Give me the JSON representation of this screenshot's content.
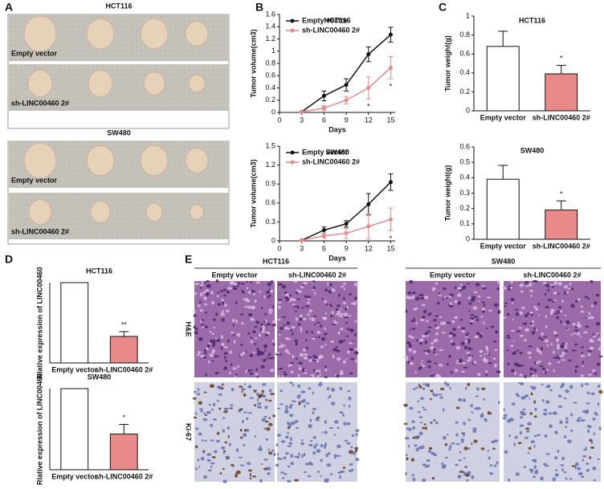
{
  "panel_labels": [
    "A",
    "B",
    "C",
    "D",
    "E"
  ],
  "panel_a": {
    "groups": [
      {
        "title": "HCT116",
        "rows": [
          "Empty vector",
          "sh-LINC00460 2#"
        ]
      },
      {
        "title": "SW480",
        "rows": [
          "Empty vector",
          "sh-LINC00460 2#"
        ]
      }
    ]
  },
  "panel_e": {
    "columns": [
      {
        "title": "HCT116",
        "subcolumns": [
          "Empty vector",
          "sh-LINC00460 2#"
        ]
      },
      {
        "title": "SW480",
        "subcolumns": [
          "Empty vector",
          "sh-LINC00460 2#"
        ]
      }
    ],
    "rows": [
      "H&E",
      "Ki-67"
    ]
  },
  "chart_data": [
    {
      "type": "line",
      "title": "HCT116",
      "x_label": "Days",
      "y_label": "Tumor volume(cm3)",
      "x": [
        3,
        6,
        9,
        12,
        15
      ],
      "xlim": [
        0,
        15.6
      ],
      "xticks": [
        0,
        3,
        6,
        9,
        12,
        15
      ],
      "ylim": [
        0,
        1.6
      ],
      "yticks": [
        0,
        0.2,
        0.4,
        0.6,
        0.8,
        1.0,
        1.2,
        1.4,
        1.6
      ],
      "legend": "upper left",
      "series": [
        {
          "name": "Empty vector",
          "color": "#111111",
          "values": [
            0.01,
            0.27,
            0.45,
            0.95,
            1.27
          ],
          "errors": [
            0.01,
            0.08,
            0.1,
            0.12,
            0.12
          ]
        },
        {
          "name": "sh-LINC00460 2#",
          "color": "#e8898a",
          "values": [
            0.01,
            0.07,
            0.2,
            0.4,
            0.73
          ],
          "errors": [
            0.01,
            0.04,
            0.06,
            0.18,
            0.18
          ]
        }
      ],
      "annotations": [
        {
          "text": "*",
          "x": 12
        },
        {
          "text": "*",
          "x": 15
        }
      ]
    },
    {
      "type": "line",
      "title": "SW480",
      "x_label": "Days",
      "y_label": "Tumor volume(cm3)",
      "x": [
        3,
        6,
        9,
        12,
        15
      ],
      "xlim": [
        0,
        15.6
      ],
      "xticks": [
        0,
        3,
        6,
        9,
        12,
        15
      ],
      "ylim": [
        0,
        1.5
      ],
      "yticks": [
        0,
        0.3,
        0.6,
        0.9,
        1.2,
        1.5
      ],
      "legend": "upper left",
      "series": [
        {
          "name": "Empty vector",
          "color": "#111111",
          "values": [
            0.01,
            0.17,
            0.27,
            0.58,
            0.93
          ],
          "errors": [
            0.01,
            0.05,
            0.05,
            0.17,
            0.13
          ]
        },
        {
          "name": "sh-LINC00460 2#",
          "color": "#e8898a",
          "values": [
            0.01,
            0.08,
            0.12,
            0.23,
            0.34
          ],
          "errors": [
            0.01,
            0.04,
            0.08,
            0.2,
            0.18
          ]
        }
      ],
      "annotations": [
        {
          "text": "*",
          "x": 15
        }
      ]
    },
    {
      "type": "bar",
      "title": "HCT116",
      "y_label": "Tumor weight(g)",
      "categories": [
        "Empty vector",
        "sh-LINC00460 2#"
      ],
      "colors": [
        "#ffffff",
        "#e8898a"
      ],
      "values": [
        0.68,
        0.39
      ],
      "errors": [
        0.16,
        0.09
      ],
      "ylim": [
        0,
        1.0
      ],
      "yticks": [
        0,
        0.2,
        0.4,
        0.6,
        0.8,
        1.0
      ],
      "annotations": [
        {
          "text": "*",
          "x": "sh-LINC00460 2#"
        }
      ]
    },
    {
      "type": "bar",
      "title": "SW480",
      "y_label": "Tumor weight(g)",
      "categories": [
        "Empty vector",
        "sh-LINC00460 2#"
      ],
      "colors": [
        "#ffffff",
        "#e8898a"
      ],
      "values": [
        0.39,
        0.19
      ],
      "errors": [
        0.09,
        0.06
      ],
      "ylim": [
        0,
        0.6
      ],
      "yticks": [
        0,
        0.1,
        0.2,
        0.3,
        0.4,
        0.5,
        0.6
      ],
      "annotations": [
        {
          "text": "*",
          "x": "sh-LINC00460 2#"
        }
      ]
    },
    {
      "type": "bar",
      "title": "HCT116",
      "y_label": "Rlative expression of LINC00460",
      "categories": [
        "Empty vector",
        "sh-LINC00460 2#"
      ],
      "colors": [
        "#ffffff",
        "#e8898a"
      ],
      "values": [
        1.0,
        0.33
      ],
      "errors": [
        0,
        0.06
      ],
      "ylim": [
        0,
        1.0
      ],
      "annotations": [
        {
          "text": "**",
          "x": "sh-LINC00460 2#"
        }
      ]
    },
    {
      "type": "bar",
      "title": "SW480",
      "y_label": "Rlative expression of LINC00460",
      "categories": [
        "Empty vector",
        "sh-LINC00460 2#"
      ],
      "colors": [
        "#ffffff",
        "#e8898a"
      ],
      "values": [
        1.0,
        0.44
      ],
      "errors": [
        0,
        0.12
      ],
      "ylim": [
        0,
        1.0
      ],
      "annotations": [
        {
          "text": "*",
          "x": "sh-LINC00460 2#"
        }
      ]
    }
  ]
}
